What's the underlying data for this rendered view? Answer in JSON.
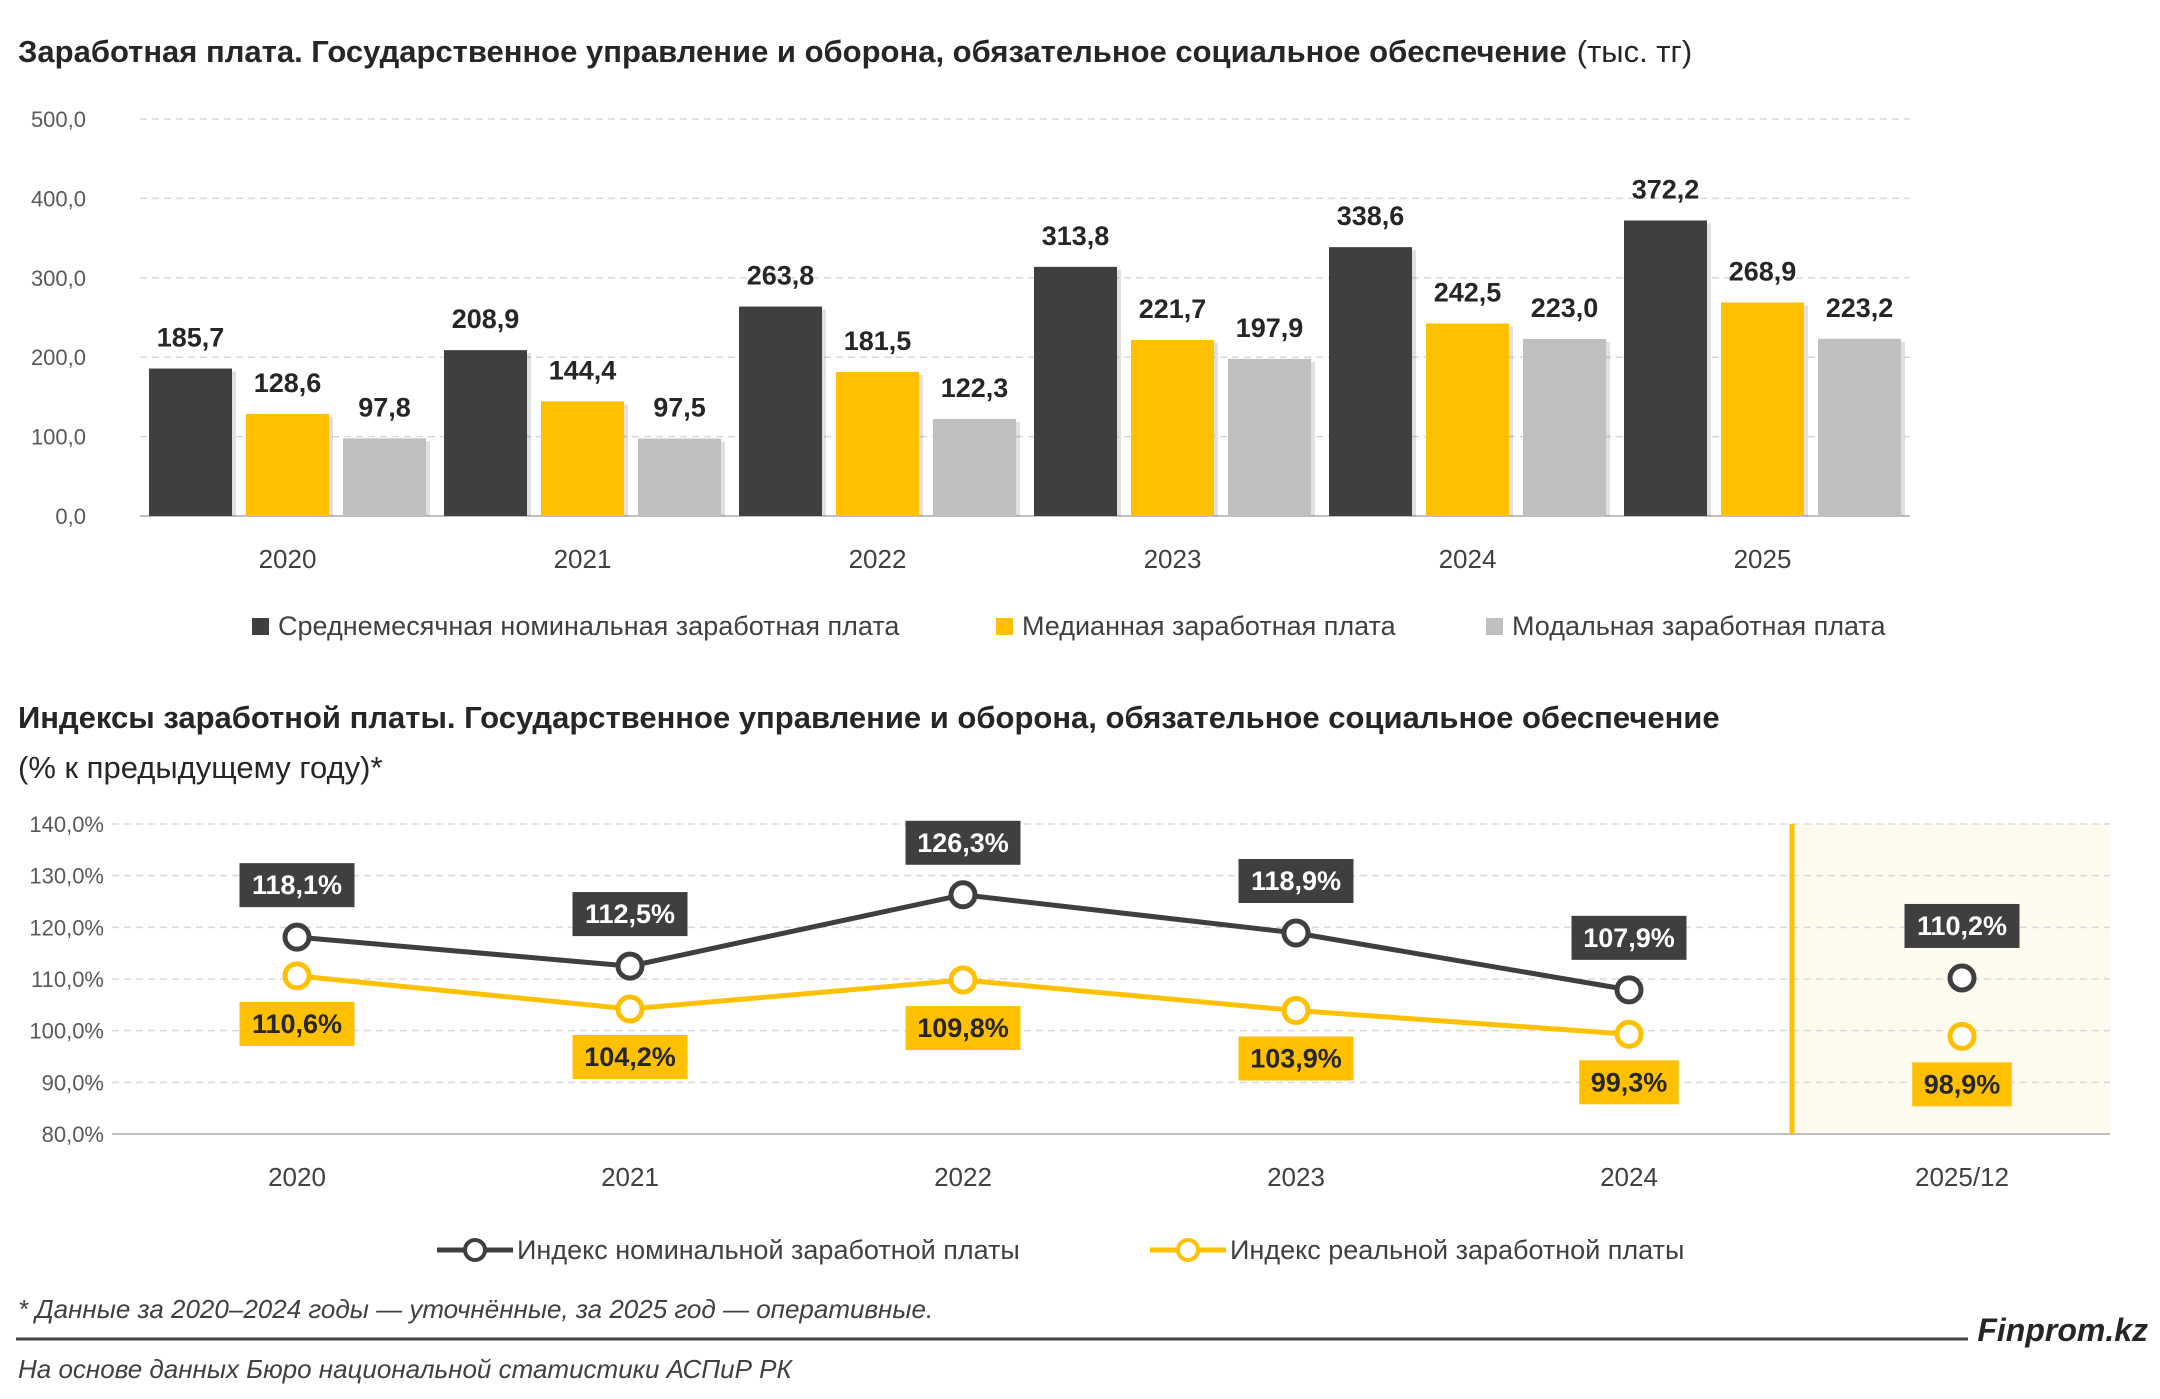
{
  "chart1_title": "Заработная плата. Государственное управление и оборона, обязательное социальное обеспечение",
  "chart1_unit": "(тыс. тг)",
  "chart2_title_line1": "Индексы заработной платы. Государственное управление и оборона, обязательное социальное обеспечение",
  "chart2_title_line2": "(% к предыдущему году)*",
  "footnote": "* Данные за 2020–2024 годы — уточнённые, за 2025 год — оперативные.",
  "brand": "Finprom.kz",
  "source": "На основе данных Бюро национальной статистики АСПиР РК",
  "colors": {
    "nominal": "#3f3f3f",
    "median": "#ffc000",
    "modal": "#bfbfbf",
    "highlight_bg": "#fdfaee",
    "grid": "#d9d9d9"
  },
  "chart_data": [
    {
      "type": "bar",
      "categories": [
        "2020",
        "2021",
        "2022",
        "2023",
        "2024",
        "2025"
      ],
      "series": [
        {
          "name": "Среднемесячная номинальная заработная плата",
          "color": "#3f3f3f",
          "values": [
            185.7,
            208.9,
            263.8,
            313.8,
            338.6,
            372.2
          ],
          "labels": [
            "185,7",
            "208,9",
            "263,8",
            "313,8",
            "338,6",
            "372,2"
          ]
        },
        {
          "name": "Медианная  заработная плата",
          "color": "#ffc000",
          "values": [
            128.6,
            144.4,
            181.5,
            221.7,
            242.5,
            268.9
          ],
          "labels": [
            "128,6",
            "144,4",
            "181,5",
            "221,7",
            "242,5",
            "268,9"
          ]
        },
        {
          "name": "Модальная  заработная плата",
          "color": "#bfbfbf",
          "values": [
            97.8,
            97.5,
            122.3,
            197.9,
            223.0,
            223.2
          ],
          "labels": [
            "97,8",
            "97,5",
            "122,3",
            "197,9",
            "223,0",
            "223,2"
          ]
        }
      ],
      "ylim": [
        0,
        500
      ],
      "yticks": [
        "0,0",
        "100,0",
        "200,0",
        "300,0",
        "400,0",
        "500,0"
      ],
      "grid": true,
      "legend": "bottom"
    },
    {
      "type": "line",
      "categories": [
        "2020",
        "2021",
        "2022",
        "2023",
        "2024",
        "2025/12"
      ],
      "series": [
        {
          "name": "Индекс номинальной заработной платы",
          "color": "#3f3f3f",
          "values": [
            118.1,
            112.5,
            126.3,
            118.9,
            107.9,
            110.2
          ],
          "labels": [
            "118,1%",
            "112,5%",
            "126,3%",
            "118,9%",
            "107,9%",
            "110,2%"
          ]
        },
        {
          "name": "Индекс реальной заработной платы",
          "color": "#ffc000",
          "values": [
            110.6,
            104.2,
            109.8,
            103.9,
            99.3,
            98.9
          ],
          "labels": [
            "110,6%",
            "104,2%",
            "109,8%",
            "103,9%",
            "99,3%",
            "98,9%"
          ]
        }
      ],
      "ylim": [
        80,
        140
      ],
      "yticks": [
        "80,0%",
        "90,0%",
        "100,0%",
        "110,0%",
        "120,0%",
        "130,0%",
        "140,0%"
      ],
      "grid": true,
      "legend": "bottom",
      "connected_points": 5,
      "highlighted_category": "2025/12"
    }
  ]
}
